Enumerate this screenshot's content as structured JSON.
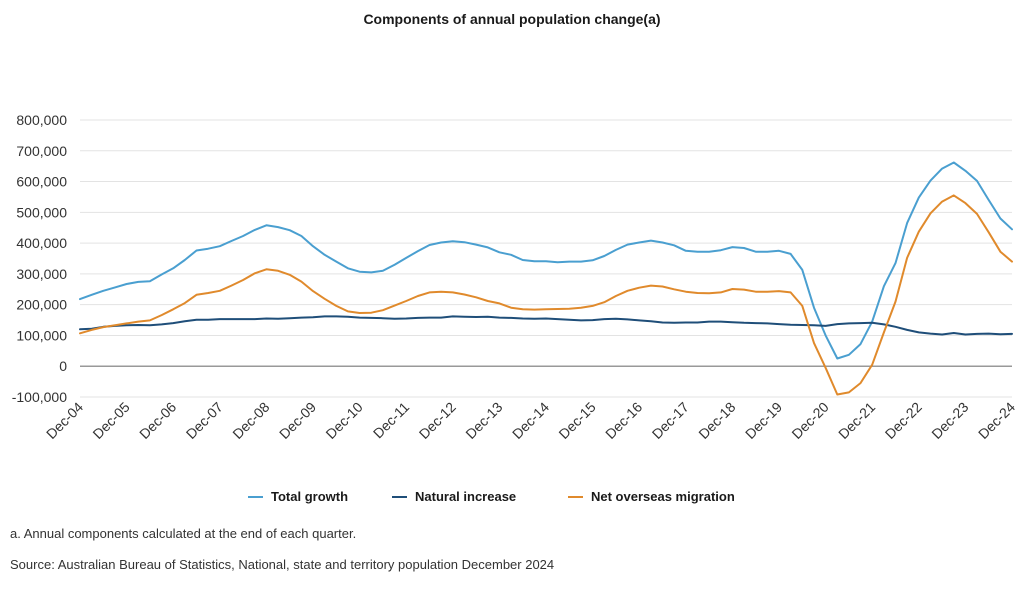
{
  "chart_data": {
    "type": "line",
    "title": "Components of annual population change(a)",
    "xlabel": "",
    "ylabel": "",
    "ylim": [
      -100000,
      800000
    ],
    "yticks": [
      -100000,
      0,
      100000,
      200000,
      300000,
      400000,
      500000,
      600000,
      700000,
      800000
    ],
    "ytick_labels": [
      "-100,000",
      "0",
      "100,000",
      "200,000",
      "300,000",
      "400,000",
      "500,000",
      "600,000",
      "700,000",
      "800,000"
    ],
    "x_tick_labels": [
      "Dec-04",
      "Dec-05",
      "Dec-06",
      "Dec-07",
      "Dec-08",
      "Dec-09",
      "Dec-10",
      "Dec-11",
      "Dec-12",
      "Dec-13",
      "Dec-14",
      "Dec-15",
      "Dec-16",
      "Dec-17",
      "Dec-18",
      "Dec-19",
      "Dec-20",
      "Dec-21",
      "Dec-22",
      "Dec-23",
      "Dec-24"
    ],
    "x_frequency": "quarterly",
    "grid": true,
    "legend_position": "bottom",
    "series": [
      {
        "name": "Total growth",
        "color": "#4a9fd0",
        "values": [
          218000,
          232000,
          245000,
          256000,
          267000,
          274000,
          276000,
          298000,
          318000,
          345000,
          376000,
          382000,
          390000,
          407000,
          423000,
          443000,
          458000,
          452000,
          442000,
          423000,
          390000,
          362000,
          340000,
          318000,
          307000,
          305000,
          310000,
          330000,
          352000,
          374000,
          394000,
          402000,
          406000,
          403000,
          395000,
          386000,
          370000,
          362000,
          345000,
          341000,
          341000,
          338000,
          340000,
          340000,
          344000,
          358000,
          378000,
          395000,
          402000,
          408000,
          402000,
          393000,
          375000,
          372000,
          372000,
          377000,
          387000,
          384000,
          372000,
          372000,
          375000,
          365000,
          313000,
          190000,
          100000,
          25000,
          37000,
          72000,
          145000,
          260000,
          335000,
          465000,
          548000,
          603000,
          642000,
          662000,
          635000,
          602000,
          540000,
          480000,
          445000
        ]
      },
      {
        "name": "Natural increase",
        "color": "#1f4e79",
        "values": [
          120000,
          122000,
          128000,
          131000,
          133000,
          134000,
          133000,
          136000,
          140000,
          146000,
          151000,
          151000,
          153000,
          153000,
          153000,
          153000,
          155000,
          154000,
          156000,
          158000,
          159000,
          162000,
          162000,
          161000,
          158000,
          157000,
          156000,
          154000,
          155000,
          157000,
          158000,
          158000,
          162000,
          161000,
          160000,
          161000,
          158000,
          157000,
          155000,
          154000,
          155000,
          153000,
          151000,
          149000,
          150000,
          153000,
          154000,
          152000,
          149000,
          146000,
          142000,
          141000,
          142000,
          142000,
          145000,
          145000,
          143000,
          141000,
          140000,
          139000,
          137000,
          135000,
          134000,
          133000,
          131000,
          137000,
          139000,
          140000,
          141000,
          136000,
          128000,
          118000,
          110000,
          106000,
          103000,
          108000,
          103000,
          105000,
          106000,
          104000,
          105000
        ]
      },
      {
        "name": "Net overseas migration",
        "color": "#e08a2c",
        "values": [
          107000,
          118000,
          127000,
          133000,
          139000,
          145000,
          149000,
          166000,
          185000,
          205000,
          232000,
          238000,
          245000,
          262000,
          280000,
          302000,
          315000,
          310000,
          297000,
          275000,
          244000,
          219000,
          196000,
          178000,
          173000,
          174000,
          182000,
          197000,
          212000,
          228000,
          240000,
          242000,
          240000,
          233000,
          224000,
          212000,
          204000,
          190000,
          185000,
          184000,
          185000,
          186000,
          187000,
          190000,
          196000,
          208000,
          228000,
          245000,
          255000,
          262000,
          259000,
          250000,
          242000,
          238000,
          237000,
          240000,
          251000,
          249000,
          242000,
          242000,
          244000,
          240000,
          196000,
          75000,
          -5000,
          -92000,
          -85000,
          -55000,
          5000,
          110000,
          210000,
          352000,
          437000,
          497000,
          535000,
          555000,
          530000,
          495000,
          435000,
          372000,
          340000
        ]
      }
    ]
  },
  "footnote": "a. Annual components calculated at the end of each quarter.",
  "source": "Source: Australian Bureau of Statistics, National, state and territory population December 2024"
}
